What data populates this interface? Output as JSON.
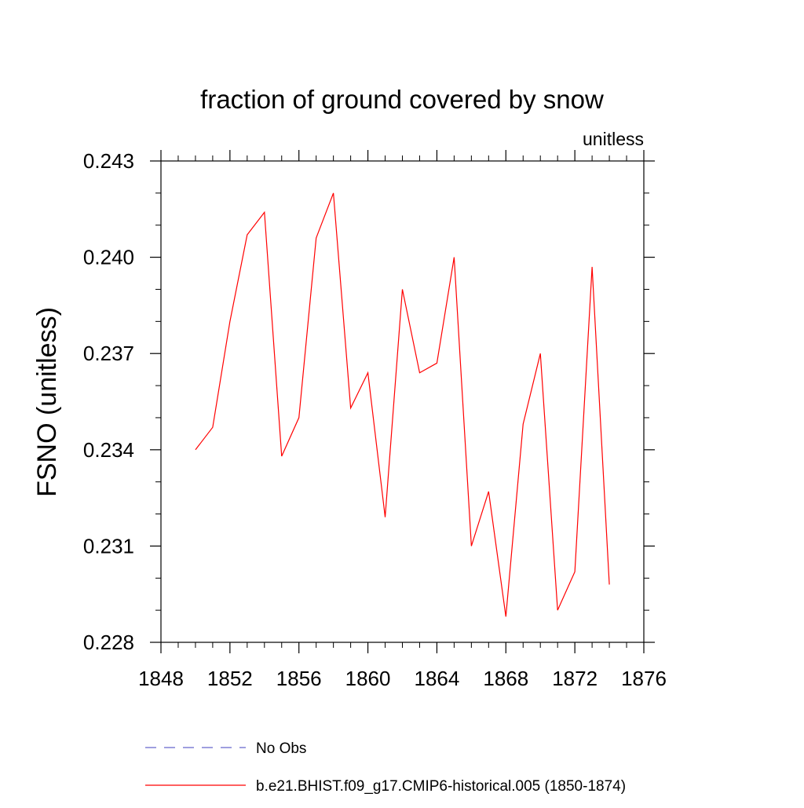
{
  "chart_data": {
    "type": "line",
    "title": "fraction of ground covered by snow",
    "units_note": "unitless",
    "xlabel": "",
    "ylabel": "FSNO  (unitless)",
    "xlim": [
      1848,
      1876
    ],
    "ylim": [
      0.228,
      0.243
    ],
    "x_ticks": [
      1848,
      1852,
      1856,
      1860,
      1864,
      1868,
      1872,
      1876
    ],
    "x_tick_labels": [
      "1848",
      "1852",
      "1856",
      "1860",
      "1864",
      "1868",
      "1872",
      "1876"
    ],
    "x_minor_step": 1,
    "y_ticks": [
      0.228,
      0.231,
      0.234,
      0.237,
      0.24,
      0.243
    ],
    "y_tick_labels": [
      "0.228",
      "0.231",
      "0.234",
      "0.237",
      "0.240",
      "0.243"
    ],
    "y_minor_step": 0.001,
    "grid": false,
    "series": [
      {
        "name": "No Obs",
        "color": "#6666cc",
        "style": "dashed",
        "x": [],
        "values": []
      },
      {
        "name": "b.e21.BHIST.f09_g17.CMIP6-historical.005 (1850-1874)",
        "color": "#ff0000",
        "style": "solid",
        "x": [
          1850,
          1851,
          1852,
          1853,
          1854,
          1855,
          1856,
          1857,
          1858,
          1859,
          1860,
          1861,
          1862,
          1863,
          1864,
          1865,
          1866,
          1867,
          1868,
          1869,
          1870,
          1871,
          1872,
          1873,
          1874
        ],
        "values": [
          0.234,
          0.2347,
          0.238,
          0.2407,
          0.2414,
          0.2338,
          0.235,
          0.2406,
          0.242,
          0.2353,
          0.2364,
          0.2319,
          0.239,
          0.2364,
          0.2367,
          0.24,
          0.231,
          0.2327,
          0.2288,
          0.2348,
          0.237,
          0.229,
          0.2302,
          0.2397,
          0.2298
        ]
      }
    ],
    "legend_position": "bottom"
  }
}
